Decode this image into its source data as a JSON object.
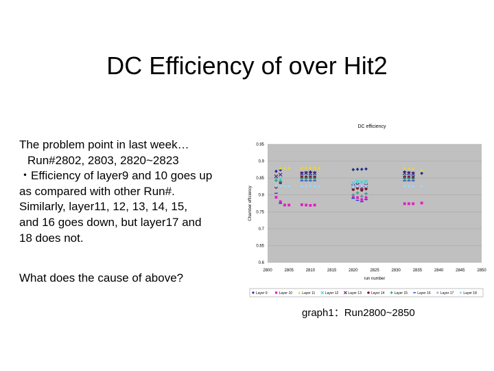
{
  "slide": {
    "title": "DC Efficiency of over Hit2",
    "body_lines": [
      "The problem point in last week…",
      "Run#2802, 2803, 2820~2823",
      "・Efficiency of layer9 and 10 goes up",
      "as compared with other Run#.",
      "Similarly, layer11, 12, 13, 14, 15,",
      "and 16 goes down, but layer17 and",
      "18 does not."
    ],
    "question": "What does the cause of above?",
    "caption": "graph1：Run2800~2850"
  },
  "chart_data": {
    "type": "scatter",
    "title": "DC efficiency",
    "xlabel": "run number",
    "ylabel": "Chamber efficiency",
    "xlim": [
      2800,
      2850
    ],
    "ylim": [
      0.6,
      0.95
    ],
    "xticks": [
      "2800",
      "2805",
      "2810",
      "2815",
      "2820",
      "2825",
      "2830",
      "2835",
      "2840",
      "2845",
      "2850"
    ],
    "yticks": [
      "0.95",
      "0.9",
      "0.85",
      "0.8",
      "0.75",
      "0.7",
      "0.65",
      "0.6"
    ],
    "legend_position": "bottom",
    "series": [
      {
        "name": "Layer 9",
        "color": "#1f2d8c",
        "marker": "diamond",
        "x": [
          2802,
          2803,
          2808,
          2809,
          2810,
          2811,
          2820,
          2821,
          2822,
          2823,
          2832,
          2833,
          2834,
          2836
        ],
        "y": [
          0.87,
          0.874,
          0.865,
          0.866,
          0.868,
          0.866,
          0.875,
          0.876,
          0.876,
          0.877,
          0.868,
          0.866,
          0.865,
          0.864
        ]
      },
      {
        "name": "Layer 10",
        "color": "#e619c8",
        "marker": "square",
        "x": [
          2802,
          2803,
          2804,
          2805,
          2808,
          2809,
          2810,
          2811,
          2820,
          2821,
          2822,
          2823,
          2832,
          2833,
          2834,
          2836
        ],
        "y": [
          0.793,
          0.78,
          0.77,
          0.77,
          0.771,
          0.77,
          0.769,
          0.77,
          0.793,
          0.792,
          0.786,
          0.792,
          0.774,
          0.774,
          0.774,
          0.776
        ]
      },
      {
        "name": "Layer 11",
        "color": "#e8d63a",
        "marker": "triangle",
        "x": [
          2803,
          2804,
          2805,
          2808,
          2809,
          2810,
          2811,
          2812,
          2832,
          2833,
          2834,
          2836
        ],
        "y": [
          0.879,
          0.88,
          0.88,
          0.88,
          0.881,
          0.88,
          0.881,
          0.88,
          0.879,
          0.878,
          0.878,
          0.873
        ]
      },
      {
        "name": "Layer 12",
        "color": "#39d3e0",
        "marker": "x",
        "x": [
          2802,
          2803,
          2808,
          2809,
          2810,
          2811,
          2820,
          2821,
          2822,
          2823,
          2832,
          2833,
          2834
        ],
        "y": [
          0.846,
          0.848,
          0.858,
          0.858,
          0.858,
          0.858,
          0.835,
          0.84,
          0.838,
          0.84,
          0.858,
          0.858,
          0.858
        ]
      },
      {
        "name": "Layer 13",
        "color": "#6a1a7a",
        "marker": "x",
        "x": [
          2802,
          2803,
          2808,
          2809,
          2810,
          2811,
          2820,
          2821,
          2822,
          2823,
          2832,
          2833,
          2834
        ],
        "y": [
          0.855,
          0.86,
          0.863,
          0.865,
          0.863,
          0.864,
          0.826,
          0.83,
          0.822,
          0.828,
          0.864,
          0.864,
          0.862
        ]
      },
      {
        "name": "Layer 14",
        "color": "#7a1b2c",
        "marker": "circle",
        "x": [
          2802,
          2803,
          2808,
          2809,
          2810,
          2811,
          2820,
          2821,
          2822,
          2823,
          2832,
          2833,
          2834
        ],
        "y": [
          0.823,
          0.836,
          0.853,
          0.853,
          0.853,
          0.853,
          0.816,
          0.82,
          0.814,
          0.818,
          0.853,
          0.853,
          0.852
        ]
      },
      {
        "name": "Layer 15",
        "color": "#2a9a8a",
        "marker": "cross",
        "x": [
          2802,
          2803,
          2808,
          2809,
          2810,
          2811,
          2820,
          2821,
          2822,
          2823,
          2832,
          2833,
          2834
        ],
        "y": [
          0.843,
          0.84,
          0.848,
          0.848,
          0.848,
          0.848,
          0.8,
          0.806,
          0.796,
          0.804,
          0.848,
          0.848,
          0.847
        ]
      },
      {
        "name": "Layer 16",
        "color": "#1a44c8",
        "marker": "dash",
        "x": [
          2802,
          2803,
          2808,
          2809,
          2810,
          2811,
          2820,
          2821,
          2822,
          2823,
          2832,
          2833,
          2834
        ],
        "y": [
          0.805,
          0.775,
          0.842,
          0.842,
          0.842,
          0.842,
          0.79,
          0.784,
          0.78,
          0.786,
          0.842,
          0.842,
          0.842
        ]
      },
      {
        "name": "Layer 17",
        "color": "#c8a0e0",
        "marker": "diamond",
        "x": [
          2802,
          2803,
          2804,
          2805,
          2808,
          2809,
          2810,
          2811,
          2812,
          2820,
          2821,
          2822,
          2823,
          2832,
          2833,
          2834,
          2836
        ],
        "y": [
          0.826,
          0.826,
          0.827,
          0.827,
          0.826,
          0.826,
          0.826,
          0.827,
          0.827,
          0.826,
          0.826,
          0.827,
          0.826,
          0.826,
          0.826,
          0.827,
          0.826
        ]
      },
      {
        "name": "Layer 18",
        "color": "#9ad8f0",
        "marker": "diamond",
        "x": [
          2802,
          2803,
          2804,
          2805,
          2808,
          2809,
          2810,
          2811,
          2812,
          2820,
          2821,
          2822,
          2823,
          2832,
          2833,
          2834,
          2836
        ],
        "y": [
          0.826,
          0.826,
          0.826,
          0.826,
          0.826,
          0.826,
          0.827,
          0.826,
          0.826,
          0.823,
          0.826,
          0.826,
          0.826,
          0.826,
          0.826,
          0.826,
          0.826
        ]
      }
    ]
  }
}
